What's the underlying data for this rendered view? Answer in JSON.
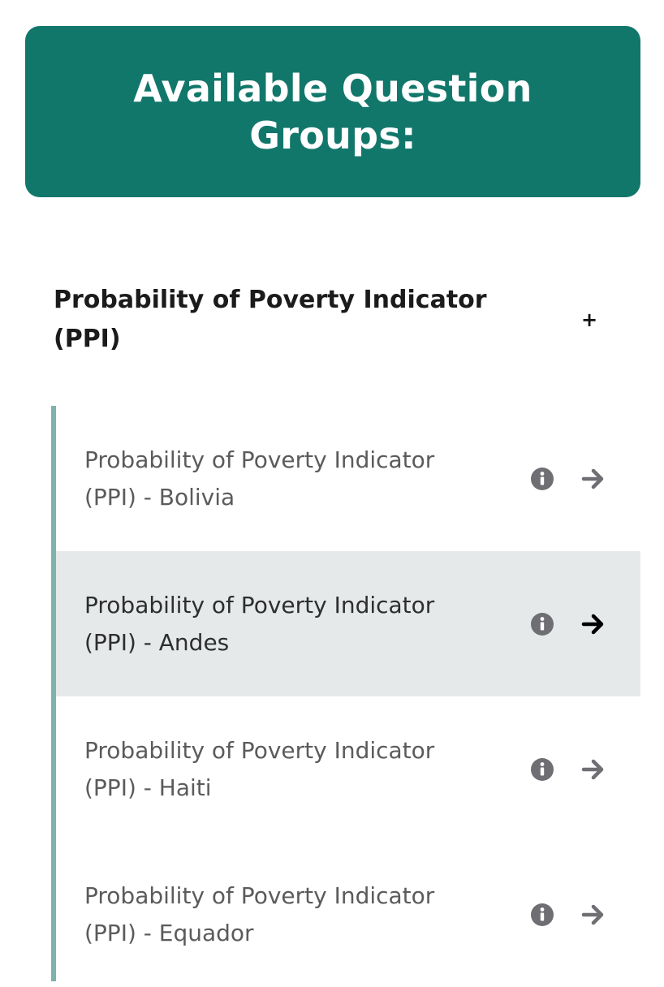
{
  "header": {
    "title": "Available Question Groups:"
  },
  "group": {
    "title": "Probability of Poverty Indicator (PPI)",
    "toggle_symbol": "+"
  },
  "items": [
    {
      "label": "Probability of Poverty Indicator (PPI) - Bolivia",
      "highlighted": false
    },
    {
      "label": "Probability of Poverty Indicator (PPI) - Andes",
      "highlighted": true
    },
    {
      "label": "Probability of Poverty Indicator (PPI) - Haiti",
      "highlighted": false
    },
    {
      "label": "Probability of Poverty Indicator (PPI) - Equador",
      "highlighted": false
    }
  ],
  "icons": {
    "info": "info-icon",
    "arrow": "arrow-right-icon"
  },
  "colors": {
    "header_bg": "#12776b",
    "accent_border": "#7fb2ab",
    "highlight_bg": "#e6e9ea",
    "icon_muted": "#6e6e73",
    "arrow_active": "#000000"
  }
}
